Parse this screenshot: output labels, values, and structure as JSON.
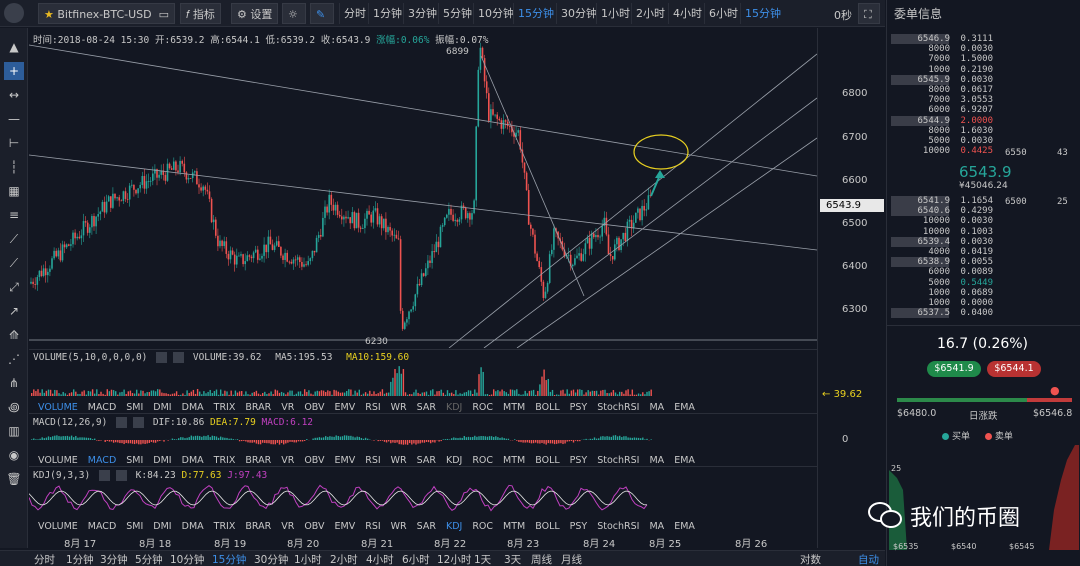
{
  "toolbar": {
    "symbol": "Bitfinex-BTC-USD",
    "indicator_label": "指标",
    "settings_label": "设置",
    "timeframes": [
      "分时",
      "1分钟",
      "3分钟",
      "5分钟",
      "10分钟",
      "15分钟",
      "30分钟",
      "1小时",
      "2小时",
      "4小时",
      "6小时",
      "15分钟"
    ],
    "active_timeframe": "15分钟",
    "seconds_label": "0秒"
  },
  "info": {
    "time": "时间:2018-08-24 15:30",
    "open": "开:6539.2",
    "high": "高:6544.1",
    "low": "低:6539.2",
    "close": "收:6543.9",
    "change": "涨幅:0.06%",
    "amplitude": "振幅:0.07%"
  },
  "annotations": {
    "high_mark": "6899",
    "low_mark": "6230"
  },
  "y_axis": {
    "ticks": [
      "6800",
      "6700",
      "6600",
      "6500",
      "6400",
      "6300"
    ],
    "current_price": "6543.9",
    "volume_tag": "39.62",
    "macd_zero": "0"
  },
  "volume_panel": {
    "label": "VOLUME(5,10,0,0,0,0)",
    "volume": "VOLUME:39.62",
    "ma5": "MA5:195.53",
    "ma10": "MA10:159.60"
  },
  "indicator_tabs": [
    "VOLUME",
    "MACD",
    "SMI",
    "DMI",
    "DMA",
    "TRIX",
    "BRAR",
    "VR",
    "OBV",
    "EMV",
    "RSI",
    "WR",
    "SAR",
    "KDJ",
    "ROC",
    "MTM",
    "BOLL",
    "PSY",
    "StochRSI",
    "MA",
    "EMA"
  ],
  "macd_panel": {
    "label": "MACD(12,26,9)",
    "dif": "DIF:10.86",
    "dea": "DEA:7.79",
    "macd": "MACD:6.12"
  },
  "kdj_panel": {
    "label": "KDJ(9,3,3)",
    "k": "K:84.23",
    "d": "D:77.63",
    "j": "J:97.43"
  },
  "dates": [
    "8月 17",
    "8月 18",
    "8月 19",
    "8月 20",
    "8月 21",
    "8月 22",
    "8月 23",
    "8月 24",
    "8月 25",
    "8月 26"
  ],
  "bottom_bar": {
    "timeframes": [
      "分时",
      "1分钟",
      "3分钟",
      "5分钟",
      "10分钟",
      "15分钟",
      "30分钟",
      "1小时",
      "2小时",
      "4小时",
      "6小时",
      "12小时",
      "1天",
      "3天",
      "周线",
      "月线"
    ],
    "active": "15分钟",
    "log_label": "对数",
    "auto_label": "自动"
  },
  "order_book": {
    "title": "委单信息",
    "asks": [
      {
        "price": "6546.9",
        "amount": "0.3111"
      },
      {
        "price": "8000",
        "amount": "0.0030"
      },
      {
        "price": "7000",
        "amount": "1.5000"
      },
      {
        "price": "1000",
        "amount": "0.2190"
      },
      {
        "price": "6545.9",
        "amount": "0.0030"
      },
      {
        "price": "8000",
        "amount": "0.0617"
      },
      {
        "price": "7000",
        "amount": "3.0553"
      },
      {
        "price": "6000",
        "amount": "6.9207"
      },
      {
        "price": "6544.9",
        "amount": "2.0000"
      },
      {
        "price": "8000",
        "amount": "1.6030"
      },
      {
        "price": "5000",
        "amount": "0.0030"
      },
      {
        "price": "10000",
        "amount": "0.4425"
      }
    ],
    "ask_side_1": "6550",
    "ask_side_2": "43",
    "last_price": "6543.9",
    "last_price_cny": "¥45046.24",
    "bids": [
      {
        "price": "6541.9",
        "amount": "1.1654"
      },
      {
        "price": "6540.6",
        "amount": "0.4299"
      },
      {
        "price": "10000",
        "amount": "0.0030"
      },
      {
        "price": "10000",
        "amount": "0.1003"
      },
      {
        "price": "6539.4",
        "amount": "0.0030"
      },
      {
        "price": "4000",
        "amount": "0.0419"
      },
      {
        "price": "6538.9",
        "amount": "0.0055"
      },
      {
        "price": "6000",
        "amount": "0.0089"
      },
      {
        "price": "5000",
        "amount": "0.5449"
      },
      {
        "price": "1000",
        "amount": "0.0689"
      },
      {
        "price": "1000",
        "amount": "0.0000"
      },
      {
        "price": "6537.5",
        "amount": "0.0400"
      }
    ],
    "bid_side_1": "6500",
    "bid_side_2": "25",
    "daily_change": "16.7 (0.26%)",
    "buy_price": "$6541.9",
    "sell_price": "$6544.1",
    "range_low": "$6480.0",
    "range_label": "日涨跌",
    "range_high": "$6546.8",
    "legend_buy": "买单",
    "legend_sell": "卖单",
    "depth_y": "25",
    "depth_x": [
      "$6535",
      "$6540",
      "$6545"
    ]
  },
  "watermark": "我们的币圈",
  "colors": {
    "up": "#26a69a",
    "down": "#ef5350",
    "accent": "#3d8fe8"
  }
}
